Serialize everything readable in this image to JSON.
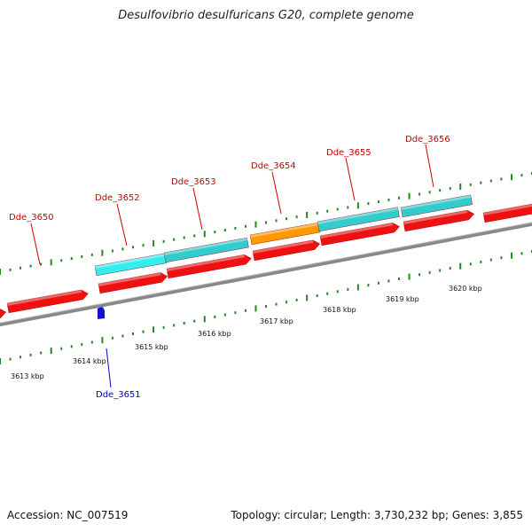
{
  "title": "Desulfovibrio desulfuricans G20, complete genome",
  "footer": {
    "accession": "Accession: NC_007519",
    "summary": "Topology: circular; Length: 3,730,232 bp; Genes: 3,855"
  },
  "colors": {
    "red": "#ee1111",
    "cyan": "#33cccc",
    "bright_cyan": "#33eeee",
    "orange": "#ff9900",
    "blue": "#1111dd",
    "tick_green": "#228822",
    "backbone": "#888888",
    "label_red": "#cc0000",
    "label_blue": "#0000cc"
  },
  "scale_labels": [
    "3613 kbp",
    "3614 kbp",
    "3615 kbp",
    "3616 kbp",
    "3617 kbp",
    "3618 kbp",
    "3619 kbp",
    "3620 kbp"
  ],
  "gene_labels": [
    {
      "text": "Dde_3650",
      "color": "label_red"
    },
    {
      "text": "Dde_3651",
      "color": "label_blue"
    },
    {
      "text": "Dde_3652",
      "color": "label_red"
    },
    {
      "text": "Dde_3653",
      "color": "label_red"
    },
    {
      "text": "Dde_3654",
      "color": "label_red"
    },
    {
      "text": "Dde_3655",
      "color": "label_red"
    },
    {
      "text": "Dde_3656",
      "color": "label_red"
    }
  ]
}
